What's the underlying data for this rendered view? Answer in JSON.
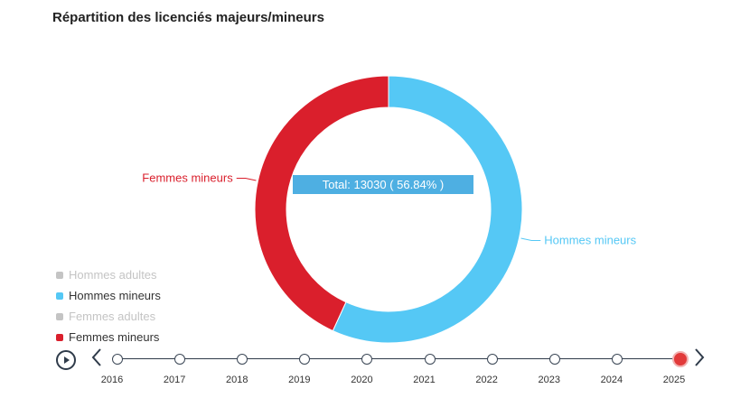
{
  "title": "Répartition des licenciés majeurs/mineurs",
  "tooltip": "Total: 13030 ( 56.84% )",
  "colors": {
    "hommes_mineurs": "#55c8f5",
    "femmes_mineurs": "#da1f2c",
    "disabled": "#c4c4c4",
    "tooltip_bg": "#4eafe2"
  },
  "chart_data": {
    "type": "pie",
    "variant": "donut",
    "series": [
      {
        "name": "Hommes mineurs",
        "value": 13030,
        "percent": 56.84,
        "color": "#55c8f5"
      },
      {
        "name": "Femmes mineurs",
        "value": 9894,
        "percent": 43.16,
        "color": "#da1f2c"
      }
    ],
    "legend": {
      "position": "bottom-left",
      "items": [
        {
          "label": "Hommes adultes",
          "color": "#c4c4c4",
          "enabled": false
        },
        {
          "label": "Hommes mineurs",
          "color": "#55c8f5",
          "enabled": true
        },
        {
          "label": "Femmes adultes",
          "color": "#c4c4c4",
          "enabled": false
        },
        {
          "label": "Femmes mineurs",
          "color": "#da1f2c",
          "enabled": true
        }
      ]
    }
  },
  "timeline": {
    "years": [
      "2016",
      "2017",
      "2018",
      "2019",
      "2020",
      "2021",
      "2022",
      "2023",
      "2024",
      "2025"
    ],
    "selected": "2025",
    "play_icon": "play-icon",
    "prev_icon": "chevron-left-icon",
    "next_icon": "chevron-right-icon"
  }
}
